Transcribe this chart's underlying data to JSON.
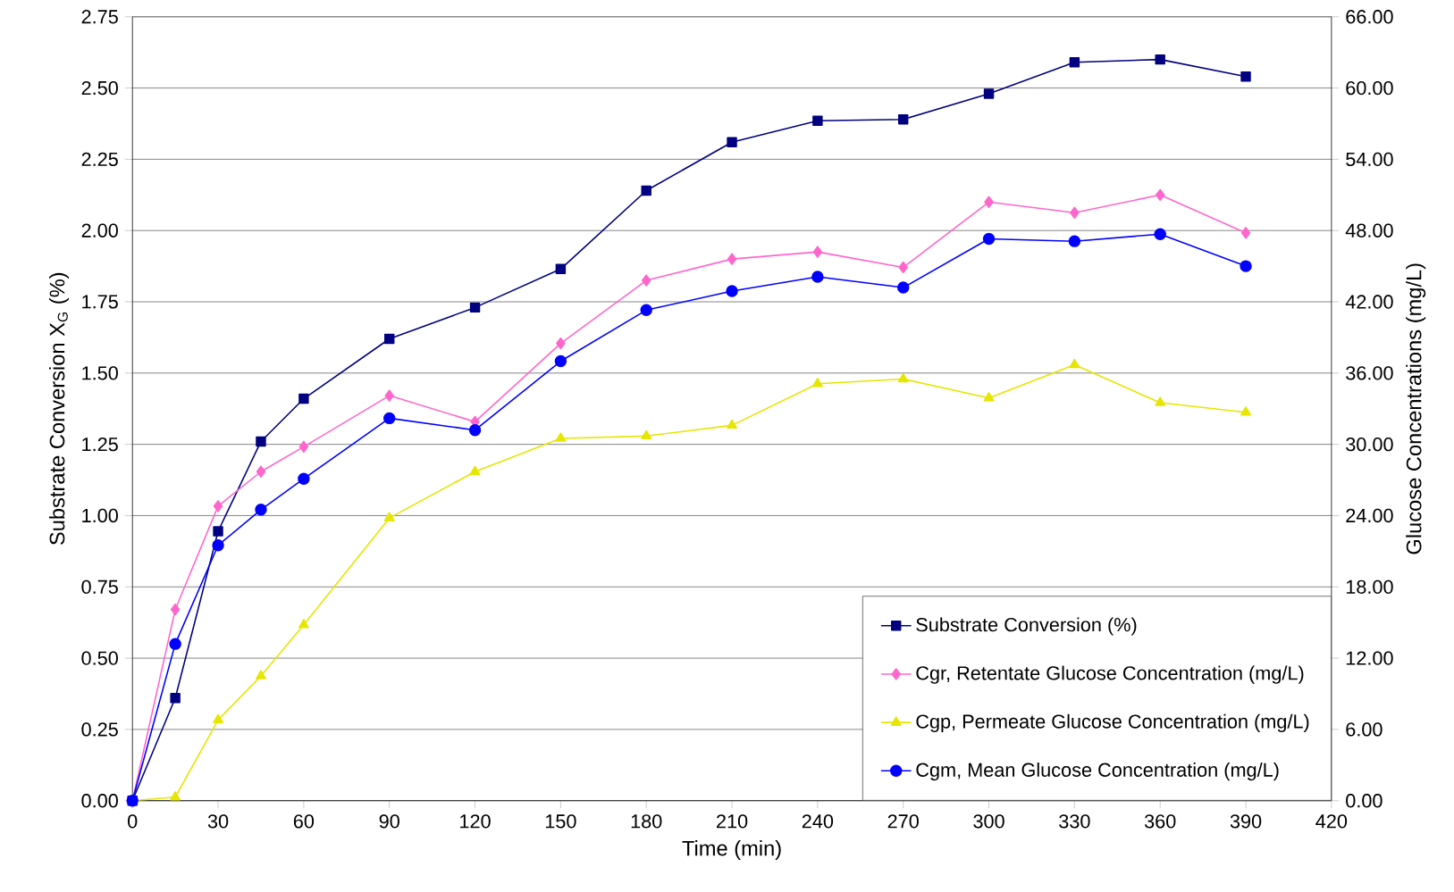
{
  "chart_data": {
    "type": "line",
    "xlabel": "Time   (min)",
    "ylabel": "Substrate Conversion X$_{G}$ (%)",
    "y2label": "Glucose Concentrations (mg/L)",
    "x": [
      0,
      15,
      30,
      45,
      60,
      90,
      120,
      150,
      180,
      210,
      240,
      270,
      300,
      330,
      360,
      390
    ],
    "xlim": [
      0,
      420
    ],
    "xticks": [
      0,
      30,
      60,
      90,
      120,
      150,
      180,
      210,
      240,
      270,
      300,
      330,
      360,
      390,
      420
    ],
    "ylim": [
      0,
      2.75
    ],
    "yticks": [
      {
        "value": 0,
        "label": "0.00"
      },
      0.25,
      {
        "value": 0.5,
        "label": "0.50"
      },
      0.75,
      {
        "value": 1,
        "label": "1.00"
      },
      1.25,
      {
        "value": 1.5,
        "label": "1.50"
      },
      1.75,
      {
        "value": 2,
        "label": "2.00"
      },
      2.25,
      {
        "value": 2.5,
        "label": "2.50"
      },
      2.75
    ],
    "y2lim": [
      0,
      66
    ],
    "y2ticks": [
      {
        "value": 0,
        "label": "0.00"
      },
      {
        "value": 6,
        "label": "6.00"
      },
      {
        "value": 12,
        "label": "12.00"
      },
      {
        "value": 18,
        "label": "18.00"
      },
      {
        "value": 24,
        "label": "24.00"
      },
      {
        "value": 30,
        "label": "30.00"
      },
      {
        "value": 36,
        "label": "36.00"
      },
      {
        "value": 42,
        "label": "42.00"
      },
      {
        "value": 48,
        "label": "48.00"
      },
      {
        "value": 54,
        "label": "54.00"
      },
      {
        "value": 60,
        "label": "60.00"
      },
      {
        "value": 66,
        "label": "66.00"
      }
    ],
    "grid": "y",
    "legend": "bottom right",
    "line_style": "solid",
    "series": [
      {
        "name": "Substrate Conversion (%)",
        "color": "#000080",
        "marker": "square",
        "values": [
          0,
          0.36,
          0.945,
          1.26,
          1.41,
          1.62,
          1.73,
          1.865,
          2.14,
          2.31,
          2.385,
          2.39,
          2.48,
          2.59,
          2.6,
          2.54
        ]
      },
      {
        "name": "Cgr, Retentate Glucose Concentration (mg/L)",
        "color": "#ff66cc",
        "marker": "diamond",
        "axis": "y2",
        "values": [
          0,
          16.1,
          24.8,
          27.7,
          29.8,
          34.1,
          31.9,
          38.5,
          43.8,
          45.6,
          46.2,
          44.9,
          50.4,
          49.5,
          51.0,
          47.8
        ]
      },
      {
        "name": "Cgp, Permeate Glucose Concentration (mg/L)",
        "color": "#e6e600",
        "marker": "triangle",
        "axis": "y2",
        "values": [
          0,
          0.3,
          6.8,
          10.5,
          14.8,
          23.8,
          27.7,
          30.5,
          30.7,
          31.6,
          35.1,
          35.5,
          33.9,
          36.7,
          33.5,
          32.7
        ]
      },
      {
        "name": "Cgm, Mean Glucose Concentration (mg/L)",
        "color": "#0000ff",
        "marker": "circle",
        "axis": "y2",
        "values": [
          0,
          13.2,
          21.5,
          24.5,
          27.1,
          32.2,
          31.2,
          37.0,
          41.3,
          42.9,
          44.1,
          43.2,
          47.3,
          47.1,
          47.7,
          45.0
        ]
      }
    ]
  }
}
